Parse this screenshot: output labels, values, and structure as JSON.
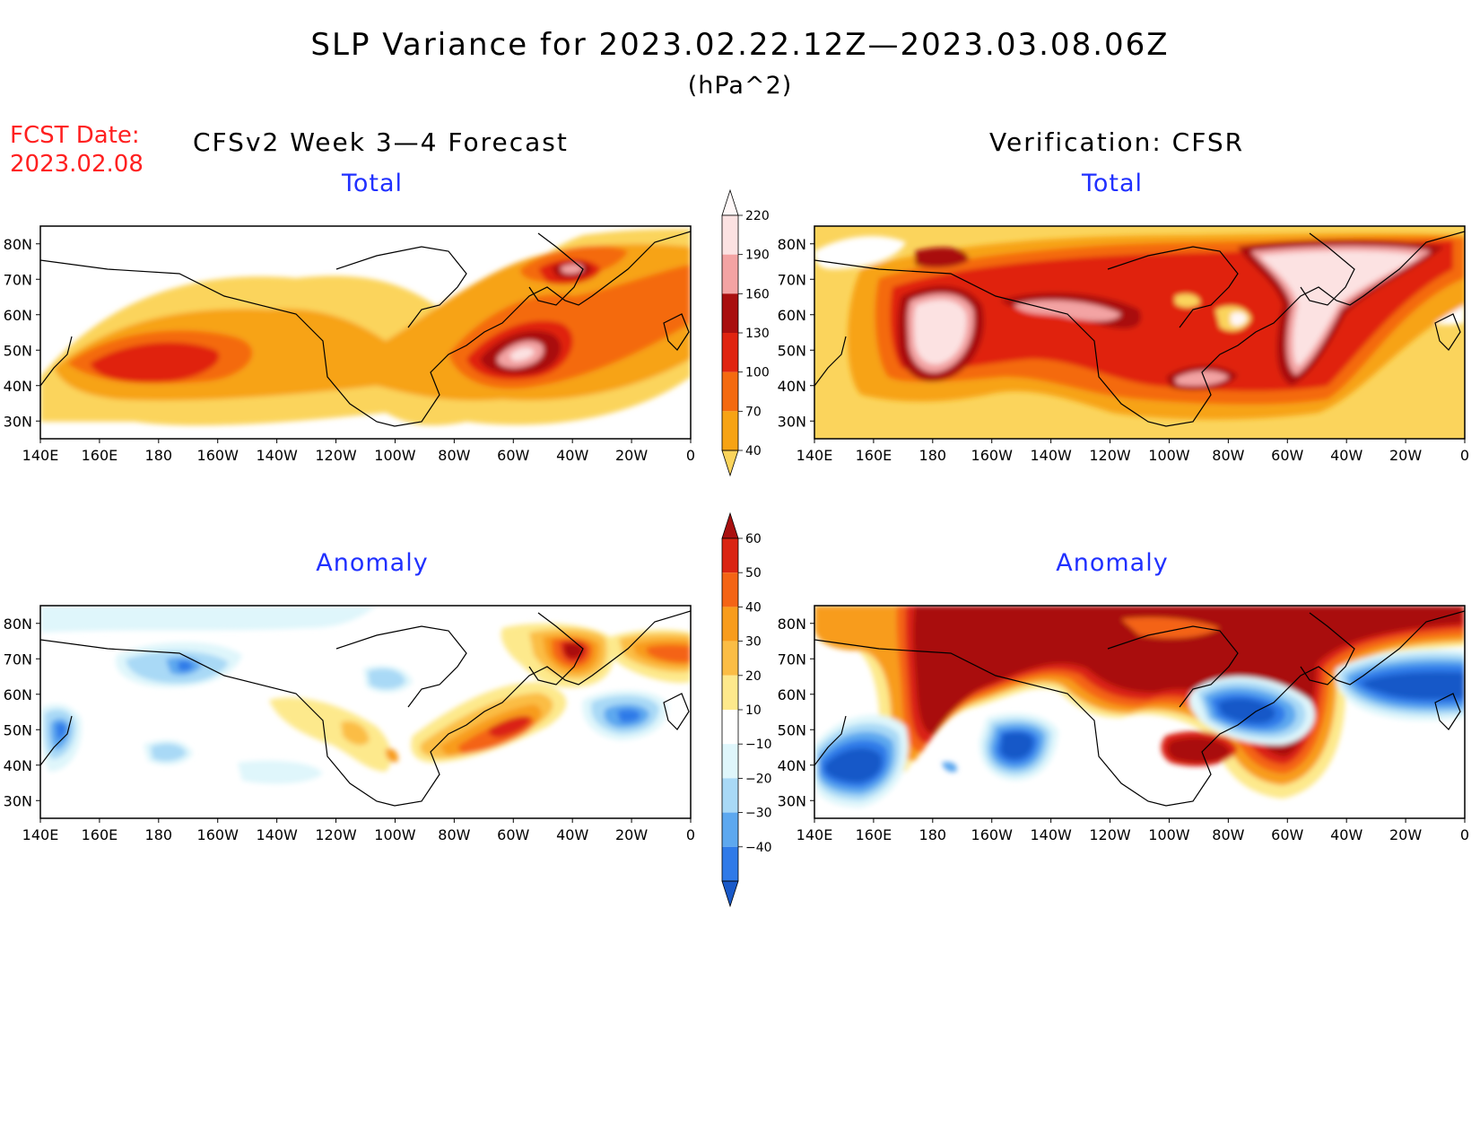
{
  "title": "SLP Variance for 2023.02.22.12Z—2023.03.08.06Z",
  "units": "(hPa^2)",
  "fcst": {
    "label": "FCST Date:",
    "date": "2023.02.08"
  },
  "left_header": "CFSv2 Week 3—4 Forecast",
  "right_header": "Verification: CFSR",
  "panels": [
    {
      "title": "Total",
      "source": "forecast"
    },
    {
      "title": "Total",
      "source": "verification"
    },
    {
      "title": "Anomaly",
      "source": "forecast"
    },
    {
      "title": "Anomaly",
      "source": "verification"
    }
  ],
  "map_axes": {
    "lon_labels": [
      "140E",
      "160E",
      "180",
      "160W",
      "140W",
      "120W",
      "100W",
      "80W",
      "60W",
      "40W",
      "20W",
      "0"
    ],
    "lat_labels": [
      "80N",
      "70N",
      "60N",
      "50N",
      "40N",
      "30N"
    ],
    "lon_range_deg_east": [
      140,
      360
    ],
    "lat_range": [
      25,
      85
    ]
  },
  "colorbars": {
    "total": {
      "levels": [
        "40",
        "70",
        "100",
        "130",
        "160",
        "190",
        "220"
      ],
      "colors": [
        "#fff8f8",
        "#fce2e2",
        "#f3a3a3",
        "#a90f0f",
        "#e02410",
        "#f46a10",
        "#f7a314",
        "#fbd45c"
      ]
    },
    "anomaly": {
      "levels": [
        "60",
        "50",
        "40",
        "30",
        "20",
        "10",
        "−10",
        "−20",
        "−30",
        "−40"
      ],
      "colors": [
        "#a91010",
        "#da2412",
        "#f46415",
        "#f89c1c",
        "#fbbd45",
        "#fde98c",
        "#ffffff",
        "#dff6fb",
        "#a9d9f6",
        "#5da8ef",
        "#2f7ae8",
        "#1959c8"
      ]
    }
  }
}
